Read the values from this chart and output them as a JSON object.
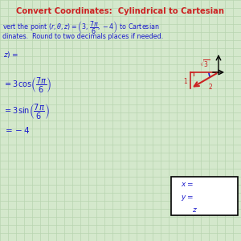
{
  "title": "Convert Coordinates:  Cylindrical to Cartesian",
  "title_color": "#cc0000",
  "bg_color": "#d4e8cc",
  "grid_color": "#b8d4b0",
  "text_color_blue": "#1a1acc",
  "text_color_red": "#cc2222",
  "figsize": [
    3.0,
    3.0
  ],
  "dpi": 100
}
